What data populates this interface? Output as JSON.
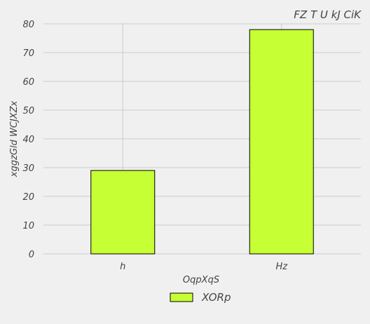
{
  "chart_data": {
    "type": "bar",
    "title": "FZ T U kJ CiK",
    "xlabel": "OqpXqS",
    "ylabel": "xggzGld WCJXZx",
    "categories": [
      "h",
      "Hz"
    ],
    "series": [
      {
        "name": "XORp",
        "values": [
          29,
          78
        ]
      }
    ],
    "ylim": [
      0,
      80
    ],
    "yticks": [
      0,
      10,
      20,
      30,
      40,
      50,
      60,
      70,
      80
    ],
    "grid": true,
    "legend_position": "bottom-center",
    "colors": {
      "bar_fill": "#c6ff33",
      "bar_edge": "#000000",
      "background": "#f0f0f0",
      "grid": "#cbcbcb",
      "text": "#444444"
    }
  }
}
